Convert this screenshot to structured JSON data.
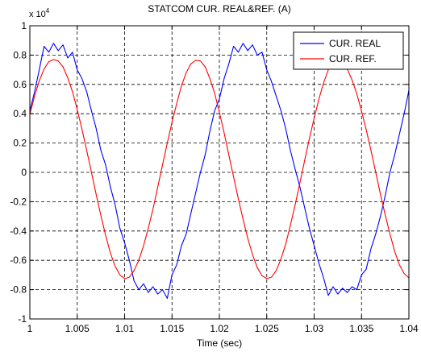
{
  "chart_data": {
    "type": "line",
    "title": "STATCOM CUR. REAL&REF. (A)",
    "xlabel": "Time (sec)",
    "ylabel": "",
    "y_multiplier_base": "x 10",
    "y_multiplier_exp": "4",
    "xlim": [
      1.0,
      1.04
    ],
    "ylim": [
      -1,
      1
    ],
    "grid": true,
    "grid_style": "dashed",
    "legend_position": "top-right",
    "x_ticks": [
      1.0,
      1.005,
      1.01,
      1.015,
      1.02,
      1.025,
      1.03,
      1.035,
      1.04
    ],
    "x_tick_labels": [
      "1",
      "1.005",
      "1.01",
      "1.015",
      "1.02",
      "1.025",
      "1.03",
      "1.035",
      "1.04"
    ],
    "y_ticks": [
      -1,
      -0.8,
      -0.6,
      -0.4,
      -0.2,
      0,
      0.2,
      0.4,
      0.6,
      0.8,
      1
    ],
    "y_tick_labels": [
      "-1",
      "-0.8",
      "-0.6",
      "-0.4",
      "-0.2",
      "0",
      "0.2",
      "0.4",
      "0.6",
      "0.8",
      "1"
    ],
    "series": [
      {
        "name": "CUR. REAL",
        "color": "#0000ff",
        "x": [
          1.0,
          1.0005,
          1.001,
          1.0015,
          1.002,
          1.0025,
          1.003,
          1.0035,
          1.004,
          1.0045,
          1.005,
          1.0055,
          1.006,
          1.0065,
          1.007,
          1.0075,
          1.008,
          1.0085,
          1.009,
          1.0095,
          1.01,
          1.0105,
          1.011,
          1.0115,
          1.012,
          1.0125,
          1.013,
          1.0135,
          1.014,
          1.0145,
          1.015,
          1.0155,
          1.016,
          1.0165,
          1.017,
          1.0175,
          1.018,
          1.0185,
          1.019,
          1.0195,
          1.02,
          1.0205,
          1.021,
          1.0215,
          1.022,
          1.0225,
          1.023,
          1.0235,
          1.024,
          1.0245,
          1.025,
          1.0255,
          1.026,
          1.0265,
          1.027,
          1.0275,
          1.028,
          1.0285,
          1.029,
          1.0295,
          1.03,
          1.0305,
          1.031,
          1.0315,
          1.032,
          1.0325,
          1.033,
          1.0335,
          1.034,
          1.0345,
          1.035,
          1.0355,
          1.036,
          1.0365,
          1.037,
          1.0375,
          1.038,
          1.0385,
          1.039,
          1.0395,
          1.04
        ],
        "y": [
          0.42,
          0.55,
          0.7,
          0.86,
          0.82,
          0.88,
          0.83,
          0.87,
          0.78,
          0.82,
          0.7,
          0.64,
          0.55,
          0.42,
          0.3,
          0.15,
          0.05,
          -0.1,
          -0.22,
          -0.38,
          -0.48,
          -0.6,
          -0.74,
          -0.8,
          -0.76,
          -0.82,
          -0.78,
          -0.83,
          -0.8,
          -0.86,
          -0.7,
          -0.63,
          -0.5,
          -0.42,
          -0.28,
          -0.14,
          0.0,
          0.12,
          0.28,
          0.42,
          0.5,
          0.64,
          0.74,
          0.86,
          0.82,
          0.88,
          0.83,
          0.87,
          0.8,
          0.82,
          0.7,
          0.62,
          0.52,
          0.42,
          0.3,
          0.15,
          0.02,
          -0.1,
          -0.24,
          -0.38,
          -0.5,
          -0.62,
          -0.72,
          -0.84,
          -0.78,
          -0.83,
          -0.79,
          -0.82,
          -0.78,
          -0.8,
          -0.7,
          -0.66,
          -0.52,
          -0.42,
          -0.3,
          -0.16,
          0.0,
          0.12,
          0.26,
          0.4,
          0.56
        ]
      },
      {
        "name": "CUR. REF.",
        "color": "#ff0000",
        "x": [
          1.0,
          1.0005,
          1.001,
          1.0015,
          1.002,
          1.0025,
          1.003,
          1.0035,
          1.004,
          1.0045,
          1.005,
          1.0055,
          1.006,
          1.0065,
          1.007,
          1.0075,
          1.008,
          1.0085,
          1.009,
          1.0095,
          1.01,
          1.0105,
          1.011,
          1.0115,
          1.012,
          1.0125,
          1.013,
          1.0135,
          1.014,
          1.0145,
          1.015,
          1.0155,
          1.016,
          1.0165,
          1.017,
          1.0175,
          1.018,
          1.0185,
          1.019,
          1.0195,
          1.02,
          1.0205,
          1.021,
          1.0215,
          1.022,
          1.0225,
          1.023,
          1.0235,
          1.024,
          1.0245,
          1.025,
          1.0255,
          1.026,
          1.0265,
          1.027,
          1.0275,
          1.028,
          1.0285,
          1.029,
          1.0295,
          1.03,
          1.0305,
          1.031,
          1.0315,
          1.032,
          1.0325,
          1.033,
          1.0335,
          1.034,
          1.0345,
          1.035,
          1.0355,
          1.036,
          1.0365,
          1.037,
          1.0375,
          1.038,
          1.0385,
          1.039,
          1.0395,
          1.04
        ],
        "y": [
          0.395,
          0.52,
          0.625,
          0.705,
          0.755,
          0.77,
          0.76,
          0.72,
          0.645,
          0.55,
          0.43,
          0.295,
          0.15,
          0.0,
          -0.15,
          -0.295,
          -0.43,
          -0.55,
          -0.64,
          -0.7,
          -0.725,
          -0.715,
          -0.67,
          -0.6,
          -0.5,
          -0.38,
          -0.25,
          -0.1,
          0.05,
          0.2,
          0.34,
          0.47,
          0.59,
          0.68,
          0.74,
          0.765,
          0.76,
          0.72,
          0.64,
          0.54,
          0.41,
          0.27,
          0.12,
          -0.03,
          -0.18,
          -0.32,
          -0.45,
          -0.56,
          -0.65,
          -0.705,
          -0.725,
          -0.715,
          -0.67,
          -0.59,
          -0.49,
          -0.36,
          -0.22,
          -0.07,
          0.08,
          0.23,
          0.37,
          0.5,
          0.61,
          0.7,
          0.75,
          0.765,
          0.75,
          0.705,
          0.63,
          0.535,
          0.42,
          0.29,
          0.15,
          0.0,
          -0.15,
          -0.29,
          -0.42,
          -0.54,
          -0.63,
          -0.69,
          -0.72
        ]
      }
    ]
  }
}
